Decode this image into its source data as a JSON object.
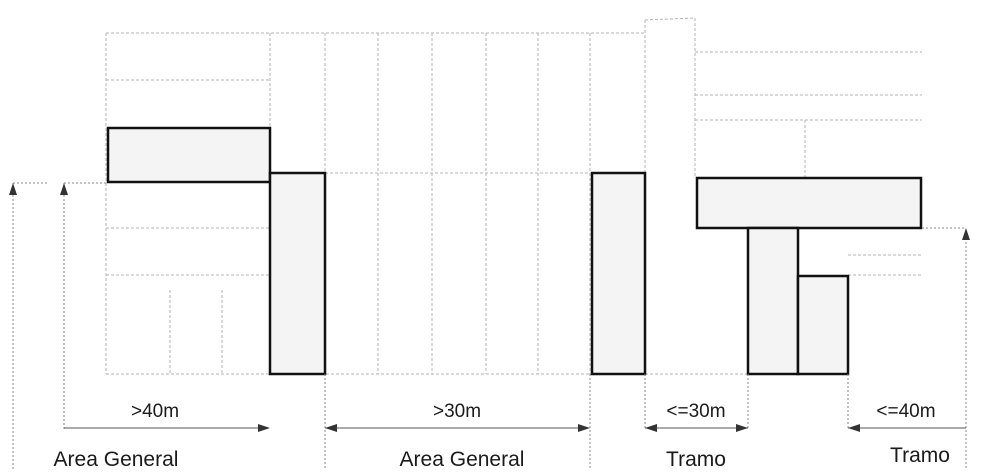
{
  "dimensions": {
    "d1": ">40m",
    "d2": ">30m",
    "d3": "<=30m",
    "d4": "<=40m"
  },
  "zones": {
    "z1": "Area General",
    "z2": "Area General",
    "z3": "Tramo",
    "z4": "Tramo"
  }
}
